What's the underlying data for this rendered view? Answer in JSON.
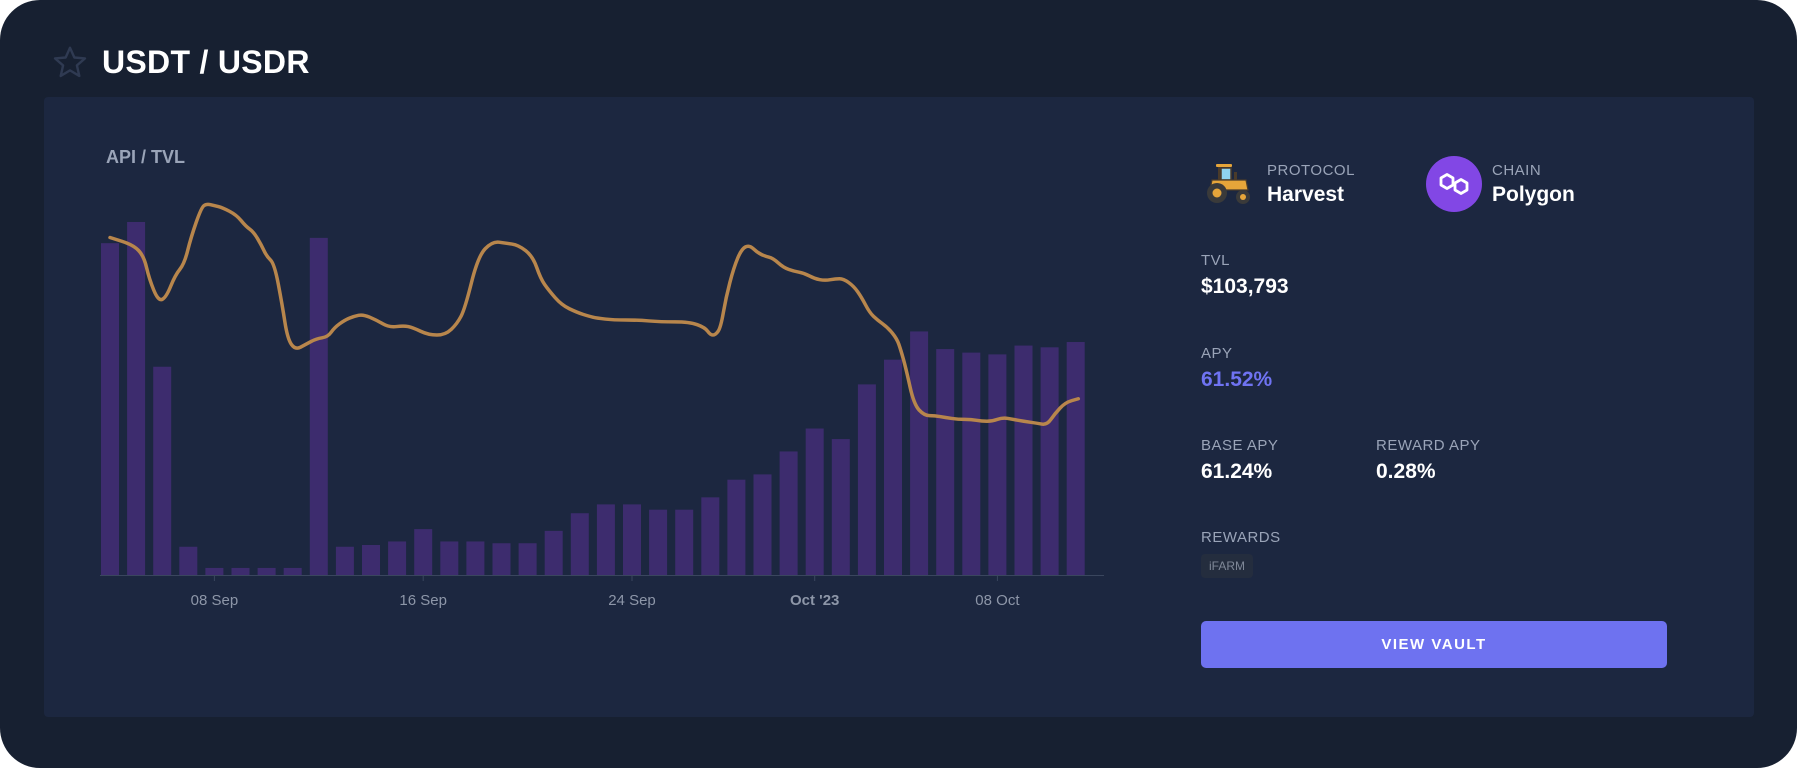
{
  "header": {
    "title": "USDT / USDR",
    "star_icon": "star-icon"
  },
  "chart_data": {
    "type": "bar",
    "title": "API / TVL",
    "x_ticks": [
      {
        "label": "08 Sep",
        "index": 4,
        "bold": false
      },
      {
        "label": "16 Sep",
        "index": 12,
        "bold": false
      },
      {
        "label": "24 Sep",
        "index": 20,
        "bold": false
      },
      {
        "label": "Oct '23",
        "index": 27,
        "bold": true
      },
      {
        "label": "08 Oct",
        "index": 34,
        "bold": false
      }
    ],
    "series": [
      {
        "kind": "bar",
        "color": "#3d2c6e",
        "values": [
          0.94,
          1.0,
          0.59,
          0.08,
          0.02,
          0.02,
          0.02,
          0.02,
          0.955,
          0.08,
          0.085,
          0.095,
          0.13,
          0.095,
          0.095,
          0.09,
          0.09,
          0.125,
          0.175,
          0.2,
          0.2,
          0.185,
          0.185,
          0.22,
          0.27,
          0.285,
          0.35,
          0.415,
          0.385,
          0.54,
          0.61,
          0.69,
          0.64,
          0.63,
          0.625,
          0.65,
          0.645,
          0.66
        ]
      },
      {
        "kind": "line",
        "color": "#b8864c",
        "x": [
          0,
          0.9,
          1.3,
          1.5,
          1.85,
          2.15,
          2.5,
          2.85,
          3.1,
          3.5,
          3.7,
          4.0,
          4.3,
          4.85,
          5.2,
          5.5,
          5.8,
          6.0,
          6.3,
          6.6,
          6.8,
          7.1,
          7.5,
          7.9,
          8.35,
          8.6,
          9.0,
          9.35,
          9.7,
          10.2,
          10.7,
          11.25,
          11.6,
          12.2,
          12.85,
          13.3,
          13.6,
          14.1,
          14.65,
          15.15,
          15.65,
          16.2,
          16.5,
          16.8,
          17.3,
          17.9,
          18.35,
          18.65,
          19.3,
          20.2,
          21.1,
          22.2,
          22.8,
          23.0,
          23.2,
          23.4,
          23.6,
          23.9,
          24.2,
          24.5,
          24.8,
          25.1,
          25.4,
          25.8,
          26.2,
          26.6,
          27.0,
          27.4,
          27.8,
          28.1,
          28.5,
          28.8,
          29.1,
          29.4,
          29.8,
          30.15,
          30.3,
          30.5,
          30.8,
          31.2,
          31.6,
          32.0,
          32.5,
          33.0,
          33.4,
          33.8,
          34.2,
          34.6,
          35.0,
          35.5,
          35.9,
          36.2,
          36.6,
          37.1
        ],
        "values": [
          0.9,
          0.88,
          0.85,
          0.79,
          0.73,
          0.74,
          0.8,
          0.83,
          0.9,
          0.98,
          0.99,
          0.985,
          0.98,
          0.96,
          0.93,
          0.915,
          0.88,
          0.85,
          0.83,
          0.72,
          0.63,
          0.6,
          0.615,
          0.63,
          0.635,
          0.66,
          0.68,
          0.69,
          0.695,
          0.68,
          0.66,
          0.665,
          0.66,
          0.64,
          0.64,
          0.67,
          0.71,
          0.85,
          0.89,
          0.885,
          0.88,
          0.85,
          0.79,
          0.76,
          0.72,
          0.7,
          0.69,
          0.685,
          0.68,
          0.68,
          0.675,
          0.675,
          0.66,
          0.64,
          0.64,
          0.66,
          0.74,
          0.82,
          0.87,
          0.88,
          0.86,
          0.85,
          0.845,
          0.82,
          0.81,
          0.805,
          0.79,
          0.785,
          0.79,
          0.79,
          0.77,
          0.74,
          0.7,
          0.68,
          0.66,
          0.63,
          0.6,
          0.55,
          0.455,
          0.425,
          0.425,
          0.42,
          0.415,
          0.415,
          0.41,
          0.41,
          0.42,
          0.415,
          0.41,
          0.405,
          0.4,
          0.43,
          0.46,
          0.47
        ]
      }
    ]
  },
  "info": {
    "protocol": {
      "label": "PROTOCOL",
      "value": "Harvest",
      "icon": "tractor-icon"
    },
    "chain": {
      "label": "CHAIN",
      "value": "Polygon",
      "icon": "polygon-icon",
      "color": "#8247e5"
    },
    "tvl": {
      "label": "TVL",
      "value": "$103,793"
    },
    "apy": {
      "label": "APY",
      "value": "61.52%",
      "color": "#6f73f2"
    },
    "base_apy": {
      "label": "BASE APY",
      "value": "61.24%"
    },
    "reward_apy": {
      "label": "REWARD APY",
      "value": "0.28%"
    },
    "rewards": {
      "label": "REWARDS",
      "tags": [
        "iFARM"
      ]
    },
    "button_label": "VIEW VAULT"
  }
}
